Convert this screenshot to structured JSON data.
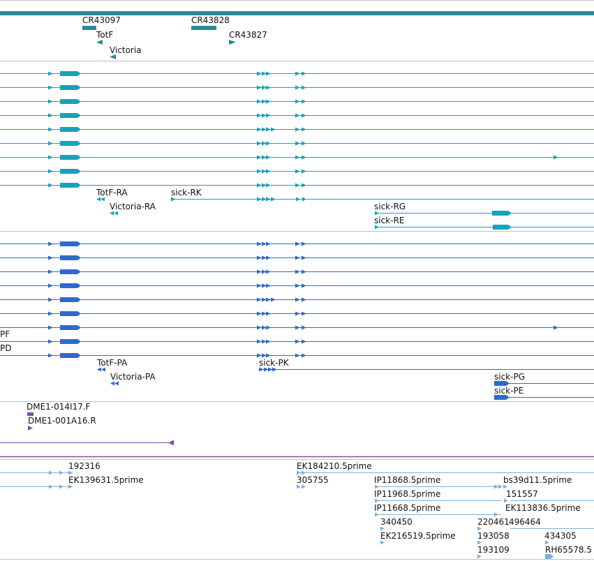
{
  "colors": {
    "gene": "#2a8a94",
    "transcript": "#16a2bb",
    "protein": "#2e6acd",
    "clone": "#7f4fa7",
    "est": "#7cb0de",
    "divider": "#b9c1c8",
    "text": "#111111"
  },
  "tracks": {
    "genes": {
      "labels": [
        {
          "id": "CR43097",
          "text": "CR43097"
        },
        {
          "id": "CR43828",
          "text": "CR43828"
        },
        {
          "id": "TotF",
          "text": "TotF"
        },
        {
          "id": "CR43827",
          "text": "CR43827"
        },
        {
          "id": "Victoria",
          "text": "Victoria"
        }
      ]
    },
    "transcripts": {
      "labels": [
        {
          "id": "TotF-RA",
          "text": "TotF-RA"
        },
        {
          "id": "sick-RK",
          "text": "sick-RK"
        },
        {
          "id": "Victoria-RA",
          "text": "Victoria-RA"
        },
        {
          "id": "sick-RG",
          "text": "sick-RG"
        },
        {
          "id": "sick-RE",
          "text": "sick-RE"
        }
      ]
    },
    "proteins": {
      "labels": [
        {
          "id": "PF",
          "text": "PF"
        },
        {
          "id": "PD",
          "text": "PD"
        },
        {
          "id": "TotF-PA",
          "text": "TotF-PA"
        },
        {
          "id": "sick-PK",
          "text": "sick-PK"
        },
        {
          "id": "Victoria-PA",
          "text": "Victoria-PA"
        },
        {
          "id": "sick-PG",
          "text": "sick-PG"
        },
        {
          "id": "sick-PE",
          "text": "sick-PE"
        }
      ]
    },
    "clones": {
      "labels": [
        {
          "id": "DME1-014I17.F",
          "text": "DME1-014I17.F"
        },
        {
          "id": "DME1-001A16.R",
          "text": "DME1-001A16.R"
        }
      ]
    },
    "ests": {
      "labels": [
        {
          "id": "192316",
          "text": "192316"
        },
        {
          "id": "EK184210.5prime",
          "text": "EK184210.5prime"
        },
        {
          "id": "EK139631.5prime",
          "text": "EK139631.5prime"
        },
        {
          "id": "305755",
          "text": "305755"
        },
        {
          "id": "IP11868.5prime",
          "text": "IP11868.5prime"
        },
        {
          "id": "bs39d11.5prime",
          "text": "bs39d11.5prime"
        },
        {
          "id": "IP11968.5prime",
          "text": "IP11968.5prime"
        },
        {
          "id": "151557",
          "text": "151557"
        },
        {
          "id": "IP11668.5prime",
          "text": "IP11668.5prime"
        },
        {
          "id": "EK113836.5prime",
          "text": "EK113836.5prime"
        },
        {
          "id": "340450",
          "text": "340450"
        },
        {
          "id": "220461",
          "text": "220461"
        },
        {
          "id": "496464",
          "text": "496464"
        },
        {
          "id": "EK216519.5prime",
          "text": "EK216519.5prime"
        },
        {
          "id": "193058",
          "text": "193058"
        },
        {
          "id": "434305",
          "text": "434305"
        },
        {
          "id": "193109",
          "text": "193109"
        },
        {
          "id": "RH65578.5",
          "text": "RH65578.5"
        }
      ]
    }
  }
}
